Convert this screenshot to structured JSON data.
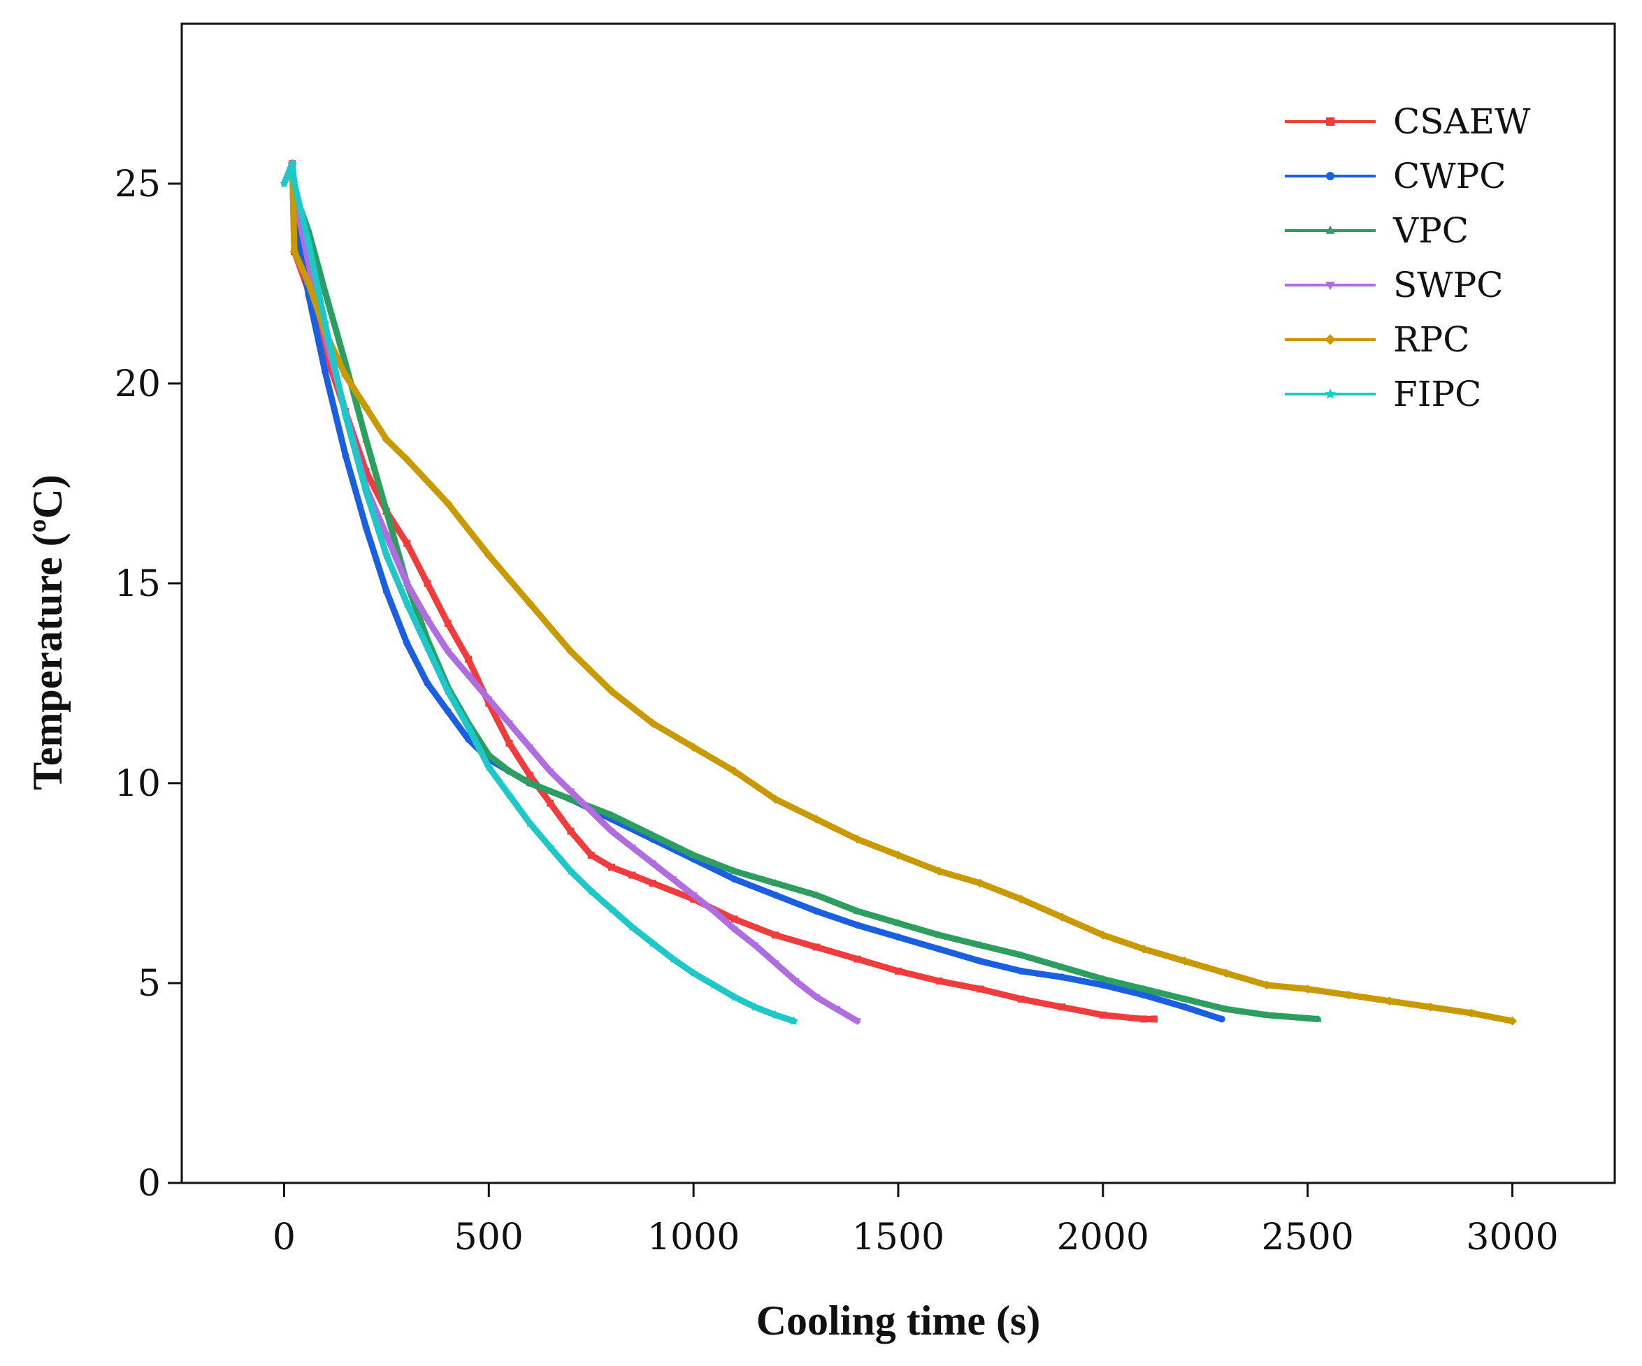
{
  "chart_data": {
    "type": "line",
    "title": "",
    "xlabel": "Cooling time (s)",
    "ylabel": "Temperature (ºC)",
    "xlim": [
      -250,
      3250
    ],
    "ylim": [
      0,
      29
    ],
    "xticks": [
      0,
      500,
      1000,
      1500,
      2000,
      2500,
      3000
    ],
    "yticks": [
      0,
      5,
      10,
      15,
      20,
      25
    ],
    "xtick_labels": [
      "0",
      "500",
      "1000",
      "1500",
      "2000",
      "2500",
      "3000"
    ],
    "ytick_labels": [
      "0",
      "5",
      "10",
      "15",
      "20",
      "25"
    ],
    "grid": false,
    "legend_position": "top-right",
    "series": [
      {
        "name": "CSAEW",
        "color": "#f03c3c",
        "marker": "square",
        "x": [
          20,
          25,
          60,
          100,
          150,
          200,
          250,
          300,
          350,
          400,
          450,
          500,
          550,
          600,
          650,
          700,
          750,
          800,
          850,
          900,
          1000,
          1100,
          1200,
          1300,
          1400,
          1500,
          1600,
          1700,
          1800,
          1900,
          2000,
          2100,
          2125
        ],
        "y": [
          25.5,
          23.3,
          22.3,
          20.8,
          19.3,
          17.8,
          16.8,
          16.0,
          15.0,
          14.0,
          13.1,
          12.0,
          11.0,
          10.2,
          9.5,
          8.8,
          8.2,
          7.9,
          7.7,
          7.5,
          7.1,
          6.6,
          6.2,
          5.9,
          5.6,
          5.3,
          5.05,
          4.85,
          4.6,
          4.4,
          4.2,
          4.1,
          4.1
        ]
      },
      {
        "name": "CWPC",
        "color": "#1a5fe0",
        "marker": "circle",
        "x": [
          20,
          25,
          60,
          100,
          150,
          200,
          250,
          300,
          350,
          400,
          450,
          500,
          550,
          600,
          700,
          800,
          900,
          1000,
          1100,
          1200,
          1300,
          1400,
          1500,
          1600,
          1700,
          1800,
          1900,
          2000,
          2100,
          2200,
          2290
        ],
        "y": [
          25.5,
          24.2,
          22.2,
          20.3,
          18.2,
          16.4,
          14.8,
          13.5,
          12.5,
          11.8,
          11.1,
          10.6,
          10.3,
          10.0,
          9.6,
          9.1,
          8.6,
          8.1,
          7.6,
          7.2,
          6.8,
          6.45,
          6.15,
          5.85,
          5.55,
          5.3,
          5.15,
          4.95,
          4.7,
          4.4,
          4.1
        ]
      },
      {
        "name": "VPC",
        "color": "#2e9e60",
        "marker": "triangle",
        "x": [
          20,
          25,
          60,
          100,
          150,
          200,
          250,
          300,
          350,
          400,
          450,
          500,
          550,
          600,
          700,
          800,
          900,
          1000,
          1100,
          1200,
          1300,
          1400,
          1500,
          1600,
          1700,
          1800,
          1900,
          2000,
          2100,
          2200,
          2300,
          2400,
          2525
        ],
        "y": [
          25.5,
          24.8,
          23.8,
          22.3,
          20.5,
          18.6,
          16.8,
          15.0,
          13.6,
          12.4,
          11.5,
          10.7,
          10.3,
          10.0,
          9.6,
          9.2,
          8.7,
          8.2,
          7.8,
          7.5,
          7.2,
          6.8,
          6.5,
          6.2,
          5.95,
          5.7,
          5.4,
          5.1,
          4.85,
          4.6,
          4.35,
          4.2,
          4.1
        ]
      },
      {
        "name": "SWPC",
        "color": "#b06de0",
        "marker": "triangle-down",
        "x": [
          20,
          25,
          60,
          100,
          150,
          200,
          250,
          300,
          350,
          400,
          450,
          500,
          550,
          600,
          650,
          700,
          750,
          800,
          850,
          900,
          950,
          1000,
          1050,
          1100,
          1150,
          1200,
          1250,
          1300,
          1350,
          1400
        ],
        "y": [
          25.5,
          24.7,
          23.0,
          21.2,
          19.3,
          17.4,
          16.2,
          15.0,
          14.1,
          13.3,
          12.7,
          12.1,
          11.5,
          10.9,
          10.3,
          9.8,
          9.3,
          8.8,
          8.4,
          8.0,
          7.6,
          7.2,
          6.8,
          6.35,
          5.95,
          5.5,
          5.05,
          4.65,
          4.35,
          4.05
        ]
      },
      {
        "name": "RPC",
        "color": "#c99a00",
        "marker": "diamond",
        "x": [
          20,
          25,
          60,
          100,
          150,
          200,
          250,
          300,
          400,
          500,
          600,
          700,
          800,
          900,
          1000,
          1100,
          1200,
          1300,
          1400,
          1500,
          1600,
          1700,
          1800,
          1900,
          2000,
          2100,
          2200,
          2300,
          2400,
          2500,
          2600,
          2700,
          2800,
          2900,
          3000
        ],
        "y": [
          25.5,
          23.3,
          22.5,
          21.3,
          20.2,
          19.4,
          18.6,
          18.1,
          17.0,
          15.7,
          14.5,
          13.3,
          12.3,
          11.5,
          10.9,
          10.3,
          9.6,
          9.1,
          8.6,
          8.2,
          7.8,
          7.5,
          7.1,
          6.65,
          6.2,
          5.85,
          5.55,
          5.25,
          4.95,
          4.85,
          4.7,
          4.55,
          4.4,
          4.25,
          4.05
        ]
      },
      {
        "name": "FIPC",
        "color": "#1ec8c8",
        "marker": "star",
        "x": [
          0,
          20,
          25,
          60,
          100,
          150,
          200,
          250,
          300,
          350,
          400,
          450,
          500,
          550,
          600,
          650,
          700,
          750,
          800,
          850,
          900,
          950,
          1000,
          1050,
          1100,
          1150,
          1200,
          1245
        ],
        "y": [
          25.0,
          25.5,
          25.0,
          23.5,
          21.5,
          19.2,
          17.3,
          15.7,
          14.5,
          13.4,
          12.3,
          11.4,
          10.4,
          9.7,
          9.0,
          8.4,
          7.8,
          7.3,
          6.85,
          6.4,
          6.0,
          5.6,
          5.25,
          4.95,
          4.65,
          4.4,
          4.2,
          4.05
        ]
      }
    ]
  }
}
